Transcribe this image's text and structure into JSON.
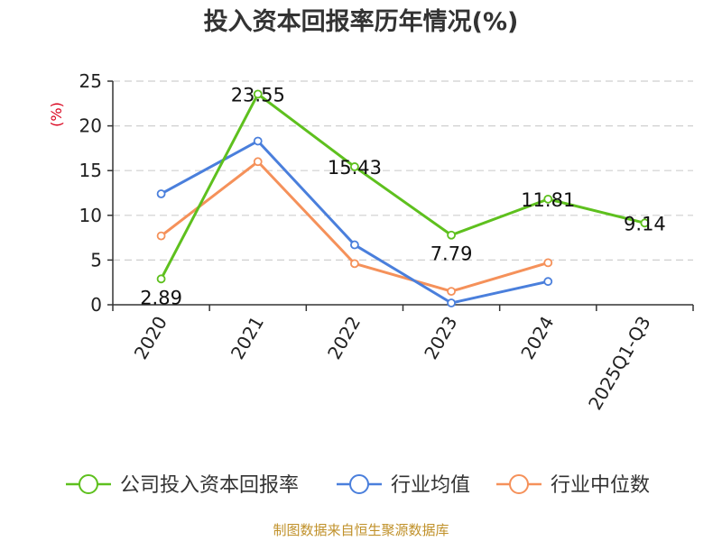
{
  "chart_data": {
    "type": "line",
    "title": "投入资本回报率历年情况(%)",
    "ylabel": "(%)",
    "xlabel": "",
    "categories": [
      "2020",
      "2021",
      "2022",
      "2023",
      "2024",
      "2025Q1-Q3"
    ],
    "ylim": [
      0,
      25
    ],
    "yticks": [
      0,
      5,
      10,
      15,
      20,
      25
    ],
    "grid": true,
    "legend_position": "bottom",
    "series": [
      {
        "name": "公司投入资本回报率",
        "color": "#5ec01e",
        "values": [
          2.89,
          23.55,
          15.43,
          7.79,
          11.81,
          9.14
        ],
        "labels": [
          "2.89",
          "23.55",
          "15.43",
          "7.79",
          "11.81",
          "9.14"
        ]
      },
      {
        "name": "行业均值",
        "color": "#4a7fdc",
        "values": [
          12.4,
          18.3,
          6.7,
          0.2,
          2.6,
          null
        ],
        "labels": []
      },
      {
        "name": "行业中位数",
        "color": "#f5915a",
        "values": [
          7.7,
          16.0,
          4.6,
          1.5,
          4.7,
          null
        ],
        "labels": []
      }
    ]
  },
  "footer": {
    "source": "制图数据来自恒生聚源数据库"
  }
}
